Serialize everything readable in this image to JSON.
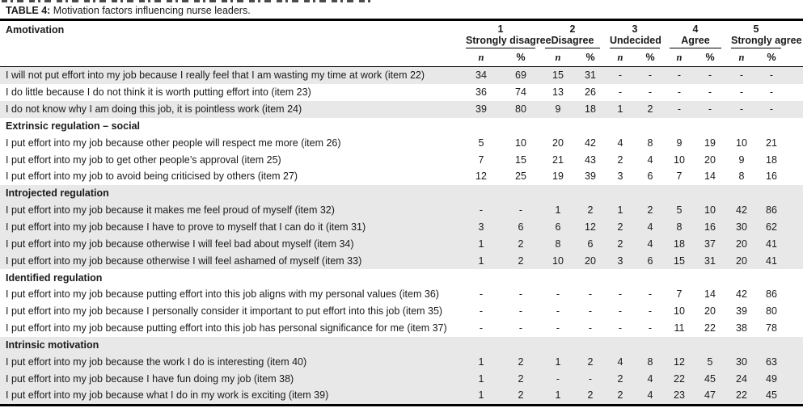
{
  "title": {
    "label": "TABLE 4:",
    "text": " Motivation factors influencing nurse leaders."
  },
  "header": {
    "first_column": "Amotivation",
    "groups": [
      {
        "number": "1",
        "label": "Strongly disagree"
      },
      {
        "number": "2",
        "label": "Disagree"
      },
      {
        "number": "3",
        "label": "Undecided"
      },
      {
        "number": "4",
        "label": "Agree"
      },
      {
        "number": "5",
        "label": "Strongly agree"
      }
    ],
    "sub": {
      "n": "n",
      "pct": "%"
    }
  },
  "table": {
    "rows": [
      {
        "type": "data",
        "shaded": true,
        "label": "I will not put effort into my job because I really feel that I am wasting my time at work (item 22)",
        "values": [
          "34",
          "69",
          "15",
          "31",
          "-",
          "-",
          "-",
          "-",
          "-",
          "-"
        ]
      },
      {
        "type": "data",
        "shaded": false,
        "label": "I do little because I do not think it is worth putting effort into (item 23)",
        "values": [
          "36",
          "74",
          "13",
          "26",
          "-",
          "-",
          "-",
          "-",
          "-",
          "-"
        ]
      },
      {
        "type": "data",
        "shaded": true,
        "label": "I do not know why I am doing this job, it is pointless work (item 24)",
        "values": [
          "39",
          "80",
          "9",
          "18",
          "1",
          "2",
          "-",
          "-",
          "-",
          "-"
        ]
      },
      {
        "type": "section",
        "shaded": false,
        "label": "Extrinsic regulation – social"
      },
      {
        "type": "data",
        "shaded": false,
        "label": "I put effort into my job because other people will respect me more (item 26)",
        "values": [
          "5",
          "10",
          "20",
          "42",
          "4",
          "8",
          "9",
          "19",
          "10",
          "21"
        ]
      },
      {
        "type": "data",
        "shaded": false,
        "label": "I put effort into my job to get other people’s approval (item 25)",
        "values": [
          "7",
          "15",
          "21",
          "43",
          "2",
          "4",
          "10",
          "20",
          "9",
          "18"
        ]
      },
      {
        "type": "data",
        "shaded": false,
        "label": "I put effort into my job to avoid being criticised by others (item 27)",
        "values": [
          "12",
          "25",
          "19",
          "39",
          "3",
          "6",
          "7",
          "14",
          "8",
          "16"
        ]
      },
      {
        "type": "section",
        "shaded": true,
        "label": "Introjected regulation"
      },
      {
        "type": "data",
        "shaded": true,
        "label": "I put effort into my job because it makes me feel proud of myself (item 32)",
        "values": [
          "-",
          "-",
          "1",
          "2",
          "1",
          "2",
          "5",
          "10",
          "42",
          "86"
        ]
      },
      {
        "type": "data",
        "shaded": true,
        "label": "I put effort into my job because I have to prove to myself that I can do it (item 31)",
        "values": [
          "3",
          "6",
          "6",
          "12",
          "2",
          "4",
          "8",
          "16",
          "30",
          "62"
        ]
      },
      {
        "type": "data",
        "shaded": true,
        "label": "I put effort into my job because otherwise I will feel bad about myself (item 34)",
        "values": [
          "1",
          "2",
          "8",
          "6",
          "2",
          "4",
          "18",
          "37",
          "20",
          "41"
        ]
      },
      {
        "type": "data",
        "shaded": true,
        "label": "I put effort into my job because otherwise I will feel ashamed of myself (item 33)",
        "values": [
          "1",
          "2",
          "10",
          "20",
          "3",
          "6",
          "15",
          "31",
          "20",
          "41"
        ]
      },
      {
        "type": "section",
        "shaded": false,
        "label": "Identified regulation"
      },
      {
        "type": "data",
        "shaded": false,
        "label": "I put effort into my job because putting effort into this job aligns with my personal values (item 36)",
        "values": [
          "-",
          "-",
          "-",
          "-",
          "-",
          "-",
          "7",
          "14",
          "42",
          "86"
        ]
      },
      {
        "type": "data",
        "shaded": false,
        "label": "I put effort into my job because I personally consider it important to put effort into this job (item 35)",
        "values": [
          "-",
          "-",
          "-",
          "-",
          "-",
          "-",
          "10",
          "20",
          "39",
          "80"
        ]
      },
      {
        "type": "data",
        "shaded": false,
        "label": "I put effort into my job because putting effort into this job has personal significance for me (item 37)",
        "values": [
          "-",
          "-",
          "-",
          "-",
          "-",
          "-",
          "11",
          "22",
          "38",
          "78"
        ]
      },
      {
        "type": "section",
        "shaded": true,
        "label": "Intrinsic motivation"
      },
      {
        "type": "data",
        "shaded": true,
        "label": "I put effort into my job because the work I do is interesting (item 40)",
        "values": [
          "1",
          "2",
          "1",
          "2",
          "4",
          "8",
          "12",
          "5",
          "30",
          "63"
        ]
      },
      {
        "type": "data",
        "shaded": true,
        "label": "I put effort into my job because I have fun doing my job (item 38)",
        "values": [
          "1",
          "2",
          "-",
          "-",
          "2",
          "4",
          "22",
          "45",
          "24",
          "49"
        ]
      },
      {
        "type": "data",
        "shaded": true,
        "label": "I put effort into my job because what I do in my work is exciting (item 39)",
        "values": [
          "1",
          "2",
          "1",
          "2",
          "2",
          "4",
          "23",
          "47",
          "22",
          "45"
        ]
      }
    ]
  },
  "colors": {
    "stripe": "#e8e8e8",
    "text": "#1a1a1a",
    "rule": "#000000"
  }
}
